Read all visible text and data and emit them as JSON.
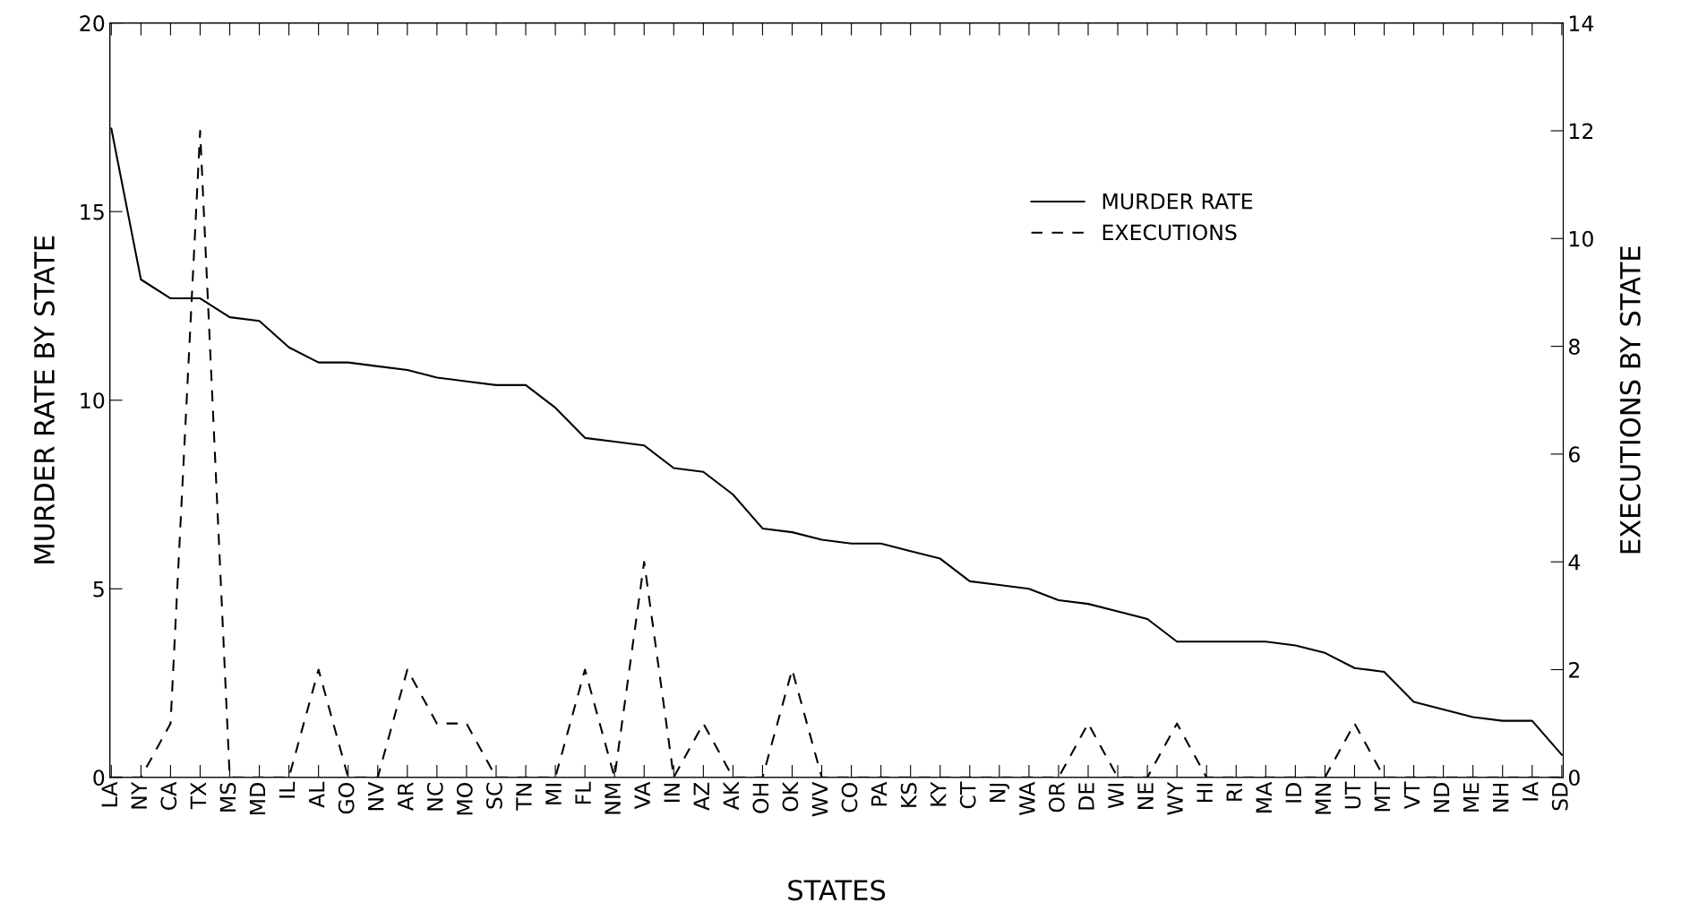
{
  "chart_data": {
    "type": "line",
    "xlabel": "STATES",
    "ylabel": "MURDER RATE BY STATE",
    "y2label": "EXECUTIONS BY STATE",
    "categories": [
      "LA",
      "NY",
      "CA",
      "TX",
      "MS",
      "MD",
      "IL",
      "AL",
      "GO",
      "NV",
      "AR",
      "NC",
      "MO",
      "SC",
      "TN",
      "MI",
      "FL",
      "NM",
      "VA",
      "IN",
      "AZ",
      "AK",
      "OH",
      "OK",
      "WV",
      "CO",
      "PA",
      "KS",
      "KY",
      "CT",
      "NJ",
      "WA",
      "OR",
      "DE",
      "WI",
      "NE",
      "WY",
      "HI",
      "RI",
      "MA",
      "ID",
      "MN",
      "UT",
      "MT",
      "VT",
      "ND",
      "ME",
      "NH",
      "IA",
      "SD"
    ],
    "series": [
      {
        "name": "MURDER RATE",
        "color": "#000000",
        "line_style": "solid",
        "values": [
          17.2,
          13.2,
          12.7,
          12.7,
          12.2,
          12.1,
          11.4,
          11.0,
          11.0,
          10.9,
          10.8,
          10.6,
          10.5,
          10.4,
          10.4,
          9.8,
          9.0,
          8.9,
          8.8,
          8.2,
          8.1,
          7.5,
          6.6,
          6.5,
          6.3,
          6.2,
          6.2,
          6.0,
          5.8,
          5.2,
          5.1,
          5.0,
          4.7,
          4.6,
          4.4,
          4.2,
          3.6,
          3.6,
          3.6,
          3.6,
          3.5,
          3.3,
          2.9,
          2.8,
          2.0,
          1.8,
          1.6,
          1.5,
          1.5,
          0.6
        ]
      },
      {
        "name": "EXECUTIONS",
        "color": "#000000",
        "line_style": "dashed",
        "axis": "y2",
        "values": [
          0,
          0,
          1,
          12,
          0,
          0,
          0,
          2,
          0,
          0,
          2,
          1,
          1,
          0,
          0,
          0,
          2,
          0,
          4,
          0,
          1,
          0,
          0,
          2,
          0,
          0,
          0,
          0,
          0,
          0,
          0,
          0,
          0,
          1,
          0,
          0,
          1,
          0,
          0,
          0,
          0,
          0,
          1,
          0,
          0,
          0,
          0,
          0,
          0,
          0
        ]
      }
    ],
    "ylim": [
      0,
      20
    ],
    "yticks": [
      0,
      5,
      10,
      15,
      20
    ],
    "y2lim": [
      0,
      14
    ],
    "y2ticks": [
      0,
      2,
      4,
      6,
      8,
      10,
      12,
      14
    ],
    "grid": false,
    "legend": "top right",
    "marker": "none"
  }
}
